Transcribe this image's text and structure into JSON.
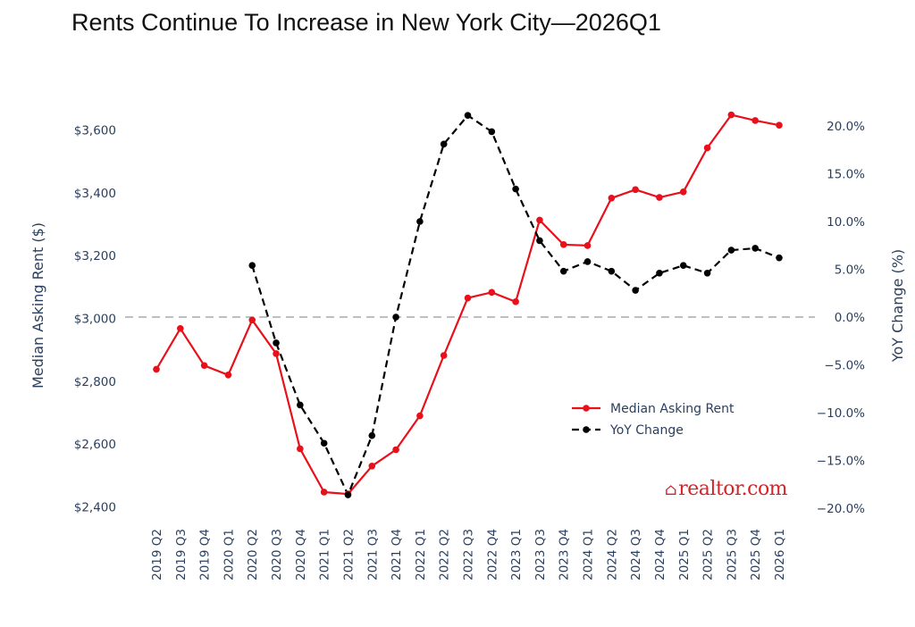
{
  "title": "Rents Continue To Increase in New York City—2026Q1",
  "brand": {
    "name": "realtor.com",
    "icon": "house-logo-icon"
  },
  "chart_data": {
    "type": "line",
    "title": "Rents Continue To Increase in New York City—2026Q1",
    "categories": [
      "2019 Q2",
      "2019 Q3",
      "2019 Q4",
      "2020 Q1",
      "2020 Q2",
      "2020 Q3",
      "2020 Q4",
      "2021 Q1",
      "2021 Q2",
      "2021 Q3",
      "2021 Q4",
      "2022 Q1",
      "2022 Q2",
      "2022 Q3",
      "2022 Q4",
      "2023 Q1",
      "2023 Q3",
      "2023 Q4",
      "2024 Q1",
      "2024 Q2",
      "2024 Q3",
      "2024 Q4",
      "2025 Q1",
      "2025 Q2",
      "2025 Q3",
      "2025 Q4",
      "2026 Q1"
    ],
    "y_left": {
      "label": "Median Asking Rent ($)",
      "range": [
        2400,
        3700
      ],
      "ticks": [
        2400,
        2600,
        2800,
        3000,
        3200,
        3400,
        3600
      ],
      "tick_labels": [
        "$2,400",
        "$2,600",
        "$2,800",
        "$3,000",
        "$3,200",
        "$3,400",
        "$3,600"
      ]
    },
    "y_right": {
      "label": "YoY Change (%)",
      "range": [
        -20,
        22
      ],
      "ticks": [
        -20,
        -15,
        -10,
        -5,
        0,
        5,
        10,
        15,
        20
      ],
      "tick_labels": [
        "−20.0%",
        "−15.0%",
        "−10.0%",
        "−5.0%",
        "0.0%",
        "5.0%",
        "10.0%",
        "15.0%",
        "20.0%"
      ]
    },
    "series": [
      {
        "name": "Median Asking Rent",
        "axis": "left",
        "color": "#e8101b",
        "style": "solid",
        "values": [
          2838,
          2968,
          2850,
          2820,
          2995,
          2888,
          2585,
          2447,
          2441,
          2530,
          2582,
          2690,
          2882,
          3065,
          3083,
          3053,
          3313,
          3235,
          3232,
          3383,
          3410,
          3385,
          3403,
          3543,
          3648,
          3630,
          3615
        ]
      },
      {
        "name": "YoY Change",
        "axis": "right",
        "color": "#000000",
        "style": "dashed",
        "values": [
          null,
          null,
          null,
          null,
          5.4,
          -2.7,
          -9.2,
          -13.2,
          -18.6,
          -12.4,
          0.0,
          10.0,
          18.1,
          21.1,
          19.4,
          13.4,
          8.0,
          4.8,
          5.8,
          4.8,
          2.8,
          4.6,
          5.4,
          4.6,
          7.0,
          7.2,
          6.2
        ]
      }
    ],
    "reference_line": {
      "axis": "right",
      "value": 0,
      "style": "dashed",
      "color": "#999999"
    },
    "legend": {
      "placement": "right-middle",
      "entries": [
        "Median Asking Rent",
        "YoY Change"
      ]
    },
    "grid": false
  }
}
